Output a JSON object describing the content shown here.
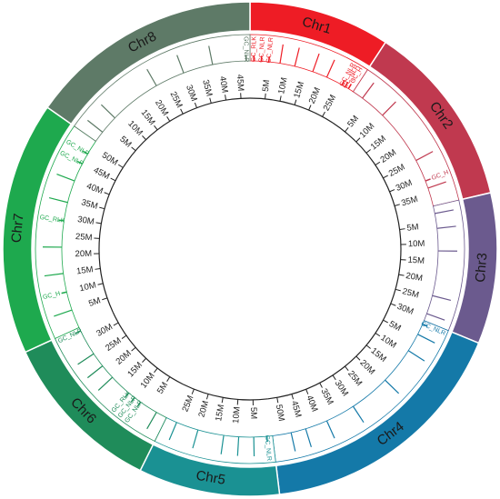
{
  "chart_data": {
    "type": "circos",
    "chromosomes": [
      {
        "name": "Chr1",
        "color": "#ee1c25",
        "length": 29,
        "ticks": [
          {
            "value": 5,
            "label": "5M"
          },
          {
            "value": 10,
            "label": "10M"
          },
          {
            "value": 15,
            "label": "15M"
          },
          {
            "value": 20,
            "label": "20M"
          },
          {
            "value": 25,
            "label": "25M"
          }
        ],
        "markers": [
          8,
          12,
          17,
          21
        ],
        "genes": [
          {
            "position": 1,
            "label": "GC_RLK"
          },
          {
            "position": 3,
            "label": "GC_NLR"
          },
          {
            "position": 5,
            "label": "GC_NLR"
          },
          {
            "position": 25.5,
            "label": "GC_NLR"
          },
          {
            "position": 26.5,
            "label": "GC_NLR"
          },
          {
            "position": 27.5,
            "label": "GC_H"
          }
        ]
      },
      {
        "name": "Chr2",
        "color": "#c0394f",
        "length": 38,
        "ticks": [
          {
            "value": 5,
            "label": "5M"
          },
          {
            "value": 10,
            "label": "10M"
          },
          {
            "value": 15,
            "label": "15M"
          },
          {
            "value": 20,
            "label": "20M"
          },
          {
            "value": 25,
            "label": "25M"
          },
          {
            "value": 30,
            "label": "30M"
          },
          {
            "value": 35,
            "label": "35M"
          }
        ],
        "markers": [
          3,
          10,
          25,
          33
        ],
        "genes": [
          {
            "position": 31,
            "label": "GC_H"
          }
        ]
      },
      {
        "name": "Chr3",
        "color": "#6b5a8e",
        "length": 31,
        "ticks": [
          {
            "value": 5,
            "label": "5M"
          },
          {
            "value": 10,
            "label": "10M"
          },
          {
            "value": 15,
            "label": "15M"
          },
          {
            "value": 20,
            "label": "20M"
          },
          {
            "value": 25,
            "label": "25M"
          },
          {
            "value": 30,
            "label": "30M"
          }
        ],
        "markers": [
          2,
          6,
          12,
          24,
          29
        ],
        "genes": []
      },
      {
        "name": "Chr4",
        "color": "#1479a8",
        "length": 53,
        "ticks": [
          {
            "value": 5,
            "label": "5M"
          },
          {
            "value": 10,
            "label": "10M"
          },
          {
            "value": 15,
            "label": "15M"
          },
          {
            "value": 20,
            "label": "20M"
          },
          {
            "value": 25,
            "label": "25M"
          },
          {
            "value": 30,
            "label": "30M"
          },
          {
            "value": 35,
            "label": "35M"
          },
          {
            "value": 40,
            "label": "40M"
          },
          {
            "value": 45,
            "label": "45M"
          },
          {
            "value": 50,
            "label": "50M"
          }
        ],
        "markers": [
          4,
          9,
          19,
          30,
          38,
          44,
          48
        ],
        "genes": [
          {
            "position": 1,
            "label": "GC_NLR"
          }
        ]
      },
      {
        "name": "Chr5",
        "color": "#1a9193",
        "length": 29,
        "ticks": [
          {
            "value": 5,
            "label": "5M"
          },
          {
            "value": 10,
            "label": "10M"
          },
          {
            "value": 15,
            "label": "15M"
          },
          {
            "value": 20,
            "label": "20M"
          },
          {
            "value": 25,
            "label": "25M"
          }
        ],
        "markers": [
          5,
          9,
          13,
          20,
          26
        ],
        "genes": [
          {
            "position": 1.5,
            "label": "GC_NLR"
          }
        ]
      },
      {
        "name": "Chr6",
        "color": "#1f8c5a",
        "length": 34,
        "ticks": [
          {
            "value": 5,
            "label": "5M"
          },
          {
            "value": 10,
            "label": "10M"
          },
          {
            "value": 15,
            "label": "15M"
          },
          {
            "value": 20,
            "label": "20M"
          },
          {
            "value": 25,
            "label": "25M"
          },
          {
            "value": 30,
            "label": "30M"
          }
        ],
        "markers": [
          3,
          18,
          22,
          26
        ],
        "genes": [
          {
            "position": 8,
            "label": "GC_NLR"
          },
          {
            "position": 10,
            "label": "GC_NLR"
          },
          {
            "position": 12,
            "label": "GC_RLK"
          },
          {
            "position": 33,
            "label": "GC_NLR"
          }
        ]
      },
      {
        "name": "Chr7",
        "color": "#1ea94e",
        "length": 52,
        "ticks": [
          {
            "value": 5,
            "label": "5M"
          },
          {
            "value": 10,
            "label": "10M"
          },
          {
            "value": 15,
            "label": "15M"
          },
          {
            "value": 20,
            "label": "20M"
          },
          {
            "value": 25,
            "label": "25M"
          },
          {
            "value": 30,
            "label": "30M"
          },
          {
            "value": 35,
            "label": "35M"
          },
          {
            "value": 40,
            "label": "40M"
          },
          {
            "value": 45,
            "label": "45M"
          },
          {
            "value": 50,
            "label": "50M"
          }
        ],
        "markers": [
          5,
          15,
          22,
          34,
          40
        ],
        "genes": [
          {
            "position": 10,
            "label": "GC_H"
          },
          {
            "position": 29,
            "label": "GC_RLK"
          },
          {
            "position": 45,
            "label": "GC_NLR"
          },
          {
            "position": 48,
            "label": "GC_NLR"
          }
        ]
      },
      {
        "name": "Chr8",
        "color": "#5e7a67",
        "length": 48,
        "ticks": [
          {
            "value": 5,
            "label": "5M"
          },
          {
            "value": 10,
            "label": "10M"
          },
          {
            "value": 15,
            "label": "15M"
          },
          {
            "value": 20,
            "label": "20M"
          },
          {
            "value": 25,
            "label": "25M"
          },
          {
            "value": 30,
            "label": "30M"
          },
          {
            "value": 35,
            "label": "35M"
          },
          {
            "value": 40,
            "label": "40M"
          },
          {
            "value": 45,
            "label": "45M"
          }
        ],
        "markers": [
          3,
          8,
          22,
          30,
          38
        ],
        "genes": [
          {
            "position": 47,
            "label": "GC_NLR"
          }
        ]
      }
    ]
  }
}
